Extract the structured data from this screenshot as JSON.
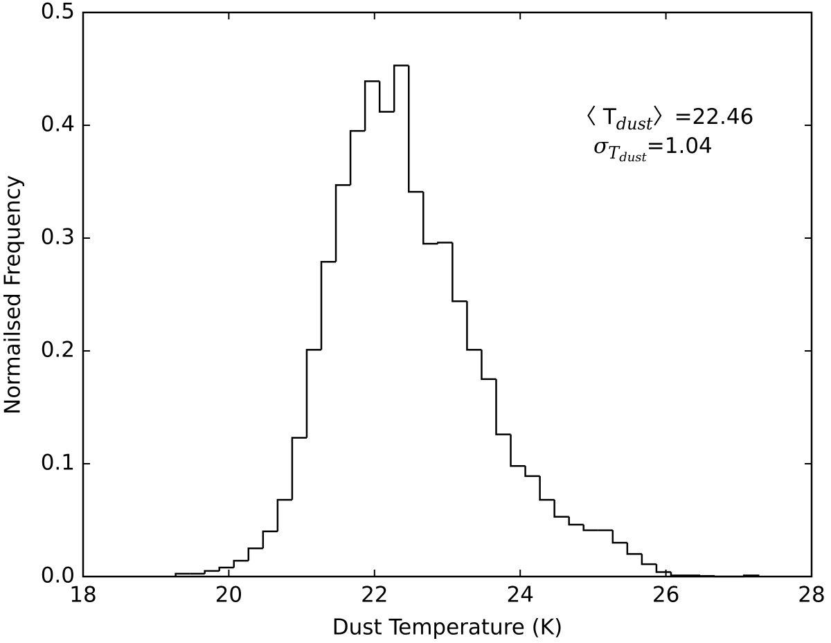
{
  "chart_data": {
    "type": "histogram",
    "xlabel": "Dust Temperature (K)",
    "ylabel": "Normailsed Frequency",
    "bins": [
      19.27,
      19.47,
      19.67,
      19.87,
      20.07,
      20.27,
      20.47,
      20.67,
      20.87,
      21.07,
      21.27,
      21.47,
      21.67,
      21.87,
      22.07,
      22.27,
      22.47,
      22.67,
      22.87,
      23.07,
      23.27,
      23.47,
      23.67,
      23.87,
      24.07,
      24.27,
      24.47,
      24.67,
      24.87,
      25.07,
      25.27,
      25.47,
      25.67,
      25.87,
      26.07,
      26.27,
      26.47,
      26.67,
      26.87,
      27.07,
      27.27
    ],
    "values": [
      0.0025,
      0.0025,
      0.005,
      0.008,
      0.014,
      0.025,
      0.04,
      0.068,
      0.123,
      0.201,
      0.279,
      0.347,
      0.395,
      0.439,
      0.412,
      0.453,
      0.341,
      0.295,
      0.296,
      0.244,
      0.201,
      0.175,
      0.126,
      0.098,
      0.089,
      0.068,
      0.053,
      0.046,
      0.041,
      0.041,
      0.03,
      0.02,
      0.011,
      0.004,
      0.001,
      0.001,
      0.0005,
      0,
      0,
      0.001
    ],
    "color": "#000000",
    "xlim": [
      18,
      28
    ],
    "xticks": [
      18,
      20,
      22,
      24,
      26,
      28
    ],
    "ylim": [
      0,
      0.5
    ],
    "yticks": [
      {
        "value": 0,
        "label": "0.0"
      },
      0.1,
      0.2,
      0.3,
      0.4,
      0.5
    ],
    "annotations": [
      [
        {
          "text": "〈 T",
          "style": "normal"
        },
        {
          "text": "dust",
          "style": "sub"
        },
        {
          "text": "〉=22.46",
          "style": "normal"
        }
      ],
      [
        {
          "text": "σ",
          "style": "italic"
        },
        {
          "text": "T",
          "style": "sub"
        },
        {
          "text": "dust",
          "style": "subsub"
        },
        {
          "text": "=1.04",
          "style": "normal"
        }
      ]
    ]
  }
}
